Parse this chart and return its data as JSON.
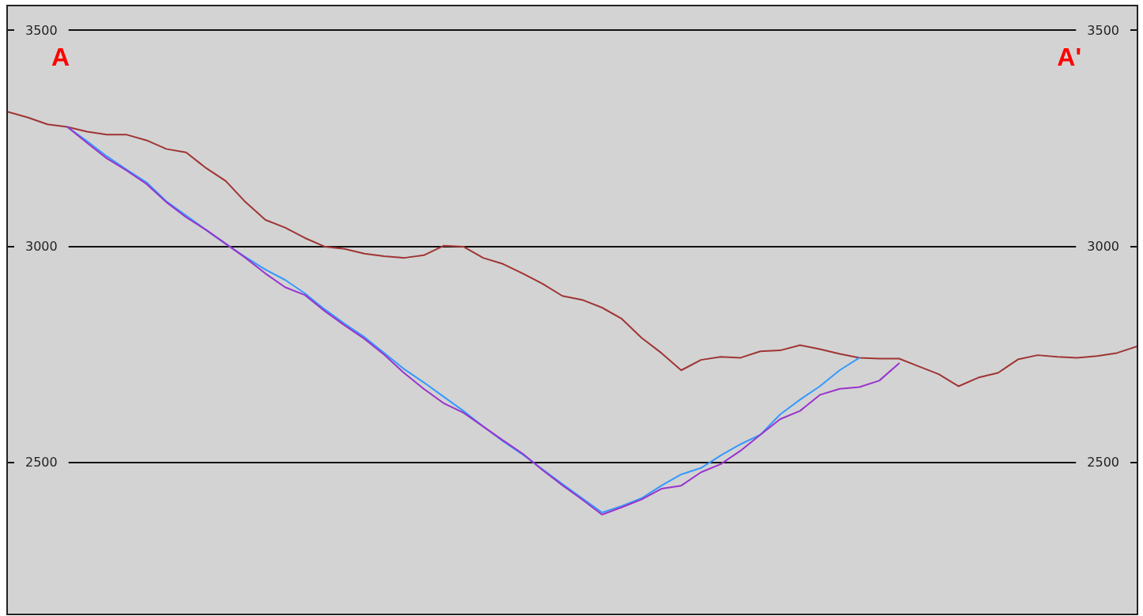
{
  "chart_data": {
    "type": "line",
    "categories": [
      null,
      null,
      null,
      null,
      null,
      null,
      null,
      null,
      null,
      null,
      null,
      null,
      null,
      null,
      null,
      null,
      null,
      null,
      null,
      null,
      null,
      null,
      null,
      null,
      null,
      null,
      null,
      null,
      null,
      null,
      null,
      null,
      null,
      null,
      null,
      null,
      null,
      null,
      null,
      null,
      null,
      null,
      null,
      null,
      null,
      null,
      null,
      null,
      null,
      null,
      null,
      null,
      null,
      null,
      null,
      null,
      null,
      null
    ],
    "series": [
      {
        "color": "#a03434",
        "values": [
          3311,
          3298,
          3282,
          3276,
          3265,
          3258,
          3258,
          3245,
          3225,
          3217,
          3181,
          3151,
          3102,
          3061,
          3043,
          3019,
          2999,
          2994,
          2983,
          2977,
          2973,
          2979,
          3001,
          2999,
          2973,
          2959,
          2937,
          2913,
          2885,
          2876,
          2858,
          2832,
          2788,
          2753,
          2713,
          2737,
          2744,
          2742,
          2757,
          2759,
          2771,
          2762,
          2751,
          2742,
          2740,
          2740,
          2722,
          2704,
          2676,
          2696,
          2707,
          2738,
          2748,
          2744,
          2742,
          2746,
          2753,
          2768
        ]
      },
      {
        "color": "#3399ff",
        "values": [
          null,
          null,
          null,
          3276,
          3243,
          3208,
          3177,
          3148,
          3104,
          3071,
          3038,
          3005,
          2975,
          2946,
          2922,
          2891,
          2854,
          2821,
          2790,
          2753,
          2716,
          2685,
          2652,
          2619,
          2583,
          2549,
          2518,
          2484,
          2450,
          2417,
          2384,
          2399,
          2417,
          2446,
          2472,
          2487,
          2516,
          2542,
          2564,
          2611,
          2645,
          2676,
          2713,
          2742,
          null,
          null,
          null,
          null,
          null,
          null,
          null,
          null,
          null,
          null,
          null,
          null,
          null,
          null
        ]
      },
      {
        "color": "#9933cc",
        "values": [
          null,
          null,
          null,
          3276,
          3239,
          3203,
          3175,
          3144,
          3102,
          3067,
          3038,
          3006,
          2973,
          2937,
          2905,
          2887,
          2850,
          2817,
          2786,
          2749,
          2707,
          2670,
          2637,
          2615,
          2583,
          2551,
          2520,
          2482,
          2447,
          2414,
          2379,
          2396,
          2414,
          2439,
          2446,
          2477,
          2496,
          2527,
          2564,
          2600,
          2619,
          2656,
          2670,
          2674,
          2689,
          2729,
          null,
          null,
          null,
          null,
          null,
          null,
          null,
          null,
          null,
          null,
          null,
          null
        ]
      }
    ],
    "ylim": [
      2150,
      3555
    ],
    "yticks": [
      2500,
      3000,
      3500
    ],
    "y2lim": [
      2150,
      3555
    ],
    "y2ticks": [
      2500,
      3000,
      3500
    ],
    "grid": "y",
    "marker": "none",
    "line_style": "solid",
    "annotations": [
      "A",
      "A'"
    ]
  }
}
